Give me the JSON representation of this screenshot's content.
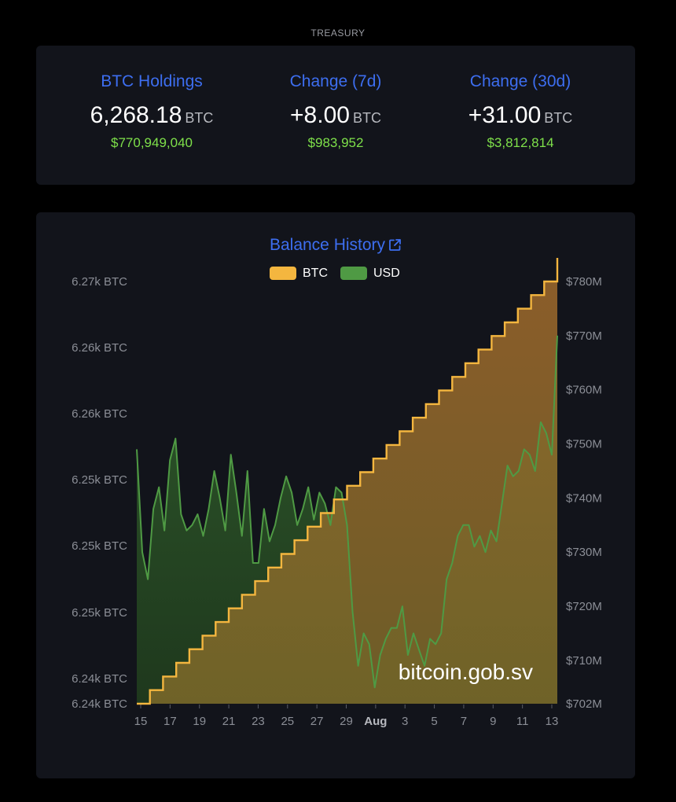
{
  "section_label": "TREASURY",
  "stats": [
    {
      "title": "BTC Holdings",
      "value": "6,268.18",
      "unit": "BTC",
      "usd": "$770,949,040"
    },
    {
      "title": "Change (7d)",
      "value": "+8.00",
      "unit": "BTC",
      "usd": "$983,952"
    },
    {
      "title": "Change (30d)",
      "value": "+31.00",
      "unit": "BTC",
      "usd": "$3,812,814"
    }
  ],
  "colors": {
    "accent": "#3d6ef0",
    "positive": "#7ee04a",
    "btc_line": "#f4b63f",
    "usd_line": "#4f9a44",
    "card_bg": "#12141b"
  },
  "chart_data": {
    "type": "line",
    "title": "Balance History",
    "title_icon": "external-link-icon",
    "legend": [
      {
        "name": "BTC",
        "color": "#f4b63f"
      },
      {
        "name": "USD",
        "color": "#4f9a44"
      }
    ],
    "legend_position": "top-center",
    "x_labels": [
      "15",
      "17",
      "19",
      "21",
      "23",
      "25",
      "27",
      "29",
      "Aug",
      "3",
      "5",
      "7",
      "9",
      "11",
      "13"
    ],
    "x_start": "Jul 15",
    "x_end": "Aug 13",
    "y_left": {
      "tick_labels": [
        "6.27k BTC",
        "6.26k BTC",
        "6.26k BTC",
        "6.25k BTC",
        "6.25k BTC",
        "6.25k BTC",
        "6.24k BTC",
        "6.24k BTC"
      ],
      "range": [
        6237.18,
        6268.18
      ]
    },
    "y_right": {
      "tick_labels": [
        "$780M",
        "$770M",
        "$760M",
        "$750M",
        "$740M",
        "$730M",
        "$720M",
        "$710M",
        "$702M"
      ],
      "range": [
        702,
        780
      ],
      "unit": "$M"
    },
    "series": [
      {
        "name": "BTC",
        "axis": "left",
        "values": [
          6237.18,
          6238.18,
          6239.18,
          6240.18,
          6241.18,
          6242.18,
          6243.18,
          6244.18,
          6245.18,
          6246.18,
          6247.18,
          6248.18,
          6249.18,
          6250.18,
          6251.18,
          6252.18,
          6253.18,
          6254.18,
          6255.18,
          6256.18,
          6257.18,
          6258.18,
          6259.18,
          6260.18,
          6261.18,
          6262.18,
          6263.18,
          6264.18,
          6265.18,
          6266.18,
          6267.18,
          6268.18
        ]
      },
      {
        "name": "USD",
        "axis": "right",
        "values": [
          749,
          730,
          725,
          738,
          742,
          734,
          747,
          751,
          737,
          734,
          735,
          737,
          733,
          738,
          745,
          740,
          734,
          748,
          741,
          733,
          745,
          728,
          728,
          738,
          732,
          735,
          740,
          744,
          741,
          735,
          738,
          742,
          736,
          741,
          739,
          735,
          742,
          741,
          735,
          719,
          709,
          715,
          713,
          705,
          711,
          714,
          716,
          716,
          720,
          711,
          715,
          712,
          709,
          714,
          713,
          715,
          725,
          728,
          733,
          735,
          735,
          731,
          733,
          730,
          734,
          732,
          739,
          746,
          744,
          745,
          749,
          748,
          745,
          754,
          752,
          748,
          770
        ]
      }
    ],
    "watermark": "bitcoin.gob.sv"
  }
}
